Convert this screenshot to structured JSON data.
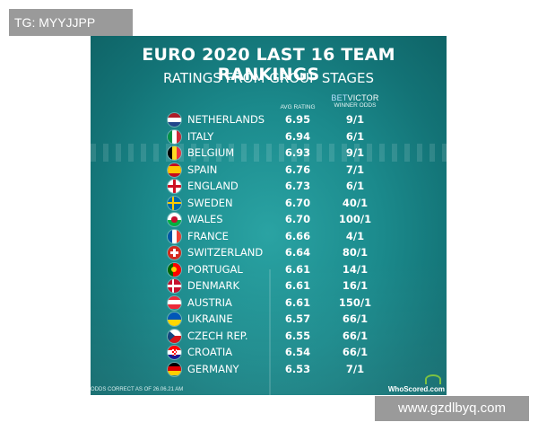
{
  "watermark_top": "TG: MYYJJPP",
  "watermark_bottom": "www.gzdlbyq.com",
  "graphic": {
    "title": "EURO 2020 LAST 16 TEAM RANKINGS",
    "subtitle": "RATINGS FROM GROUP STAGES",
    "col_avg": "AVG RATING",
    "brand_bet": "BET",
    "brand_victor": "VICTOR",
    "col_odds": "WINNER ODDS",
    "footnote": "ODDS CORRECT AS OF 26.06.21 AM",
    "logo_text": "WhoScored.com",
    "teams": [
      {
        "name": "NETHERLANDS",
        "avg": "6.95",
        "odds": "9/1",
        "flag": "netherlands-flag-icon"
      },
      {
        "name": "ITALY",
        "avg": "6.94",
        "odds": "6/1",
        "flag": "italy-flag-icon"
      },
      {
        "name": "BELGIUM",
        "avg": "6.93",
        "odds": "9/1",
        "flag": "belgium-flag-icon"
      },
      {
        "name": "SPAIN",
        "avg": "6.76",
        "odds": "7/1",
        "flag": "spain-flag-icon"
      },
      {
        "name": "ENGLAND",
        "avg": "6.73",
        "odds": "6/1",
        "flag": "england-flag-icon"
      },
      {
        "name": "SWEDEN",
        "avg": "6.70",
        "odds": "40/1",
        "flag": "sweden-flag-icon"
      },
      {
        "name": "WALES",
        "avg": "6.70",
        "odds": "100/1",
        "flag": "wales-flag-icon"
      },
      {
        "name": "FRANCE",
        "avg": "6.66",
        "odds": "4/1",
        "flag": "france-flag-icon"
      },
      {
        "name": "SWITZERLAND",
        "avg": "6.64",
        "odds": "80/1",
        "flag": "switzerland-flag-icon"
      },
      {
        "name": "PORTUGAL",
        "avg": "6.61",
        "odds": "14/1",
        "flag": "portugal-flag-icon"
      },
      {
        "name": "DENMARK",
        "avg": "6.61",
        "odds": "16/1",
        "flag": "denmark-flag-icon"
      },
      {
        "name": "AUSTRIA",
        "avg": "6.61",
        "odds": "150/1",
        "flag": "austria-flag-icon"
      },
      {
        "name": "UKRAINE",
        "avg": "6.57",
        "odds": "66/1",
        "flag": "ukraine-flag-icon"
      },
      {
        "name": "CZECH REP.",
        "avg": "6.55",
        "odds": "66/1",
        "flag": "czech-flag-icon"
      },
      {
        "name": "CROATIA",
        "avg": "6.54",
        "odds": "66/1",
        "flag": "croatia-flag-icon"
      },
      {
        "name": "GERMANY",
        "avg": "6.53",
        "odds": "7/1",
        "flag": "germany-flag-icon"
      }
    ]
  }
}
